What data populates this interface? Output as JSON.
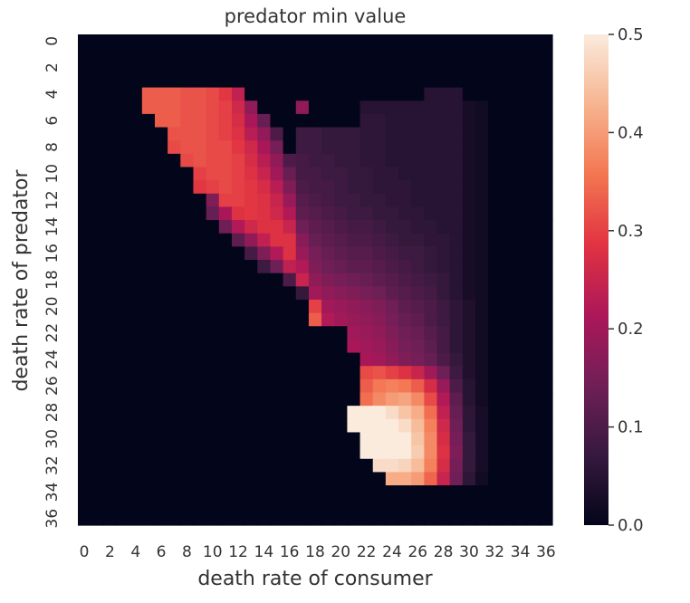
{
  "chart_data": {
    "type": "heatmap",
    "title": "predator min value",
    "xlabel": "death rate of consumer",
    "ylabel": "death rate of predator",
    "x_ticks": [
      "0",
      "2",
      "4",
      "6",
      "8",
      "10",
      "12",
      "14",
      "16",
      "18",
      "20",
      "22",
      "24",
      "26",
      "28",
      "30",
      "32",
      "34",
      "36"
    ],
    "y_ticks": [
      "0",
      "2",
      "4",
      "6",
      "8",
      "10",
      "12",
      "14",
      "16",
      "18",
      "20",
      "22",
      "24",
      "26",
      "28",
      "30",
      "32",
      "34",
      "36"
    ],
    "colorbar": {
      "range": [
        0.0,
        0.5
      ],
      "ticks": [
        "0.0",
        "0.1",
        "0.2",
        "0.3",
        "0.4",
        "0.5"
      ],
      "colors": [
        "#03051a",
        "#36193e",
        "#701f57",
        "#ad1759",
        "#e13342",
        "#f37651",
        "#f6b48f",
        "#faebdd"
      ]
    },
    "grid": false,
    "legend": "colorbar-right",
    "n_rows": 37,
    "n_cols": 37,
    "values": [
      [
        0,
        0,
        0,
        0,
        0,
        0,
        0,
        0,
        0,
        0,
        0,
        0,
        0,
        0,
        0,
        0,
        0,
        0,
        0,
        0,
        0,
        0,
        0,
        0,
        0,
        0,
        0,
        0,
        0,
        0,
        0,
        0,
        0,
        0,
        0,
        0,
        0
      ],
      [
        0,
        0,
        0,
        0,
        0,
        0,
        0,
        0,
        0,
        0,
        0,
        0,
        0,
        0,
        0,
        0,
        0,
        0,
        0,
        0,
        0,
        0,
        0,
        0,
        0,
        0,
        0,
        0,
        0,
        0,
        0,
        0,
        0,
        0,
        0,
        0,
        0
      ],
      [
        0,
        0,
        0,
        0,
        0,
        0,
        0,
        0,
        0,
        0,
        0,
        0,
        0,
        0,
        0,
        0,
        0,
        0,
        0,
        0,
        0,
        0,
        0,
        0,
        0,
        0,
        0,
        0,
        0,
        0,
        0,
        0,
        0,
        0,
        0,
        0,
        0
      ],
      [
        0,
        0,
        0,
        0,
        0,
        0,
        0,
        0,
        0,
        0,
        0,
        0,
        0,
        0,
        0,
        0,
        0,
        0,
        0,
        0,
        0,
        0,
        0,
        0,
        0,
        0,
        0,
        0,
        0,
        0,
        0,
        0,
        0,
        0,
        0,
        0,
        0
      ],
      [
        0,
        0,
        0,
        0,
        0,
        0.33,
        0.33,
        0.33,
        0.32,
        0.32,
        0.31,
        0.29,
        0.24,
        0,
        0,
        0,
        0,
        0,
        0,
        0,
        0,
        0,
        0,
        0,
        0,
        0,
        0,
        0.05,
        0.05,
        0.05,
        0,
        0,
        0,
        0,
        0,
        0,
        0
      ],
      [
        0,
        0,
        0,
        0,
        0,
        0.33,
        0.33,
        0.33,
        0.32,
        0.32,
        0.31,
        0.3,
        0.26,
        0.18,
        0,
        0,
        0,
        0.18,
        0,
        0,
        0,
        0,
        0.05,
        0.05,
        0.05,
        0.05,
        0.05,
        0.05,
        0.05,
        0.05,
        0.03,
        0.02,
        0,
        0,
        0,
        0,
        0
      ],
      [
        0,
        0,
        0,
        0,
        0,
        0,
        0.33,
        0.33,
        0.32,
        0.32,
        0.31,
        0.3,
        0.27,
        0.21,
        0.13,
        0,
        0,
        0,
        0,
        0,
        0,
        0,
        0.06,
        0.06,
        0.05,
        0.05,
        0.05,
        0.05,
        0.05,
        0.05,
        0.03,
        0.02,
        0,
        0,
        0,
        0,
        0
      ],
      [
        0,
        0,
        0,
        0,
        0,
        0,
        0,
        0.32,
        0.32,
        0.32,
        0.31,
        0.3,
        0.28,
        0.23,
        0.18,
        0.1,
        0,
        0.08,
        0.08,
        0.07,
        0.07,
        0.07,
        0.06,
        0.06,
        0.05,
        0.05,
        0.05,
        0.05,
        0.05,
        0.05,
        0.03,
        0.02,
        0,
        0,
        0,
        0,
        0
      ],
      [
        0,
        0,
        0,
        0,
        0,
        0,
        0,
        0.31,
        0.32,
        0.32,
        0.31,
        0.31,
        0.29,
        0.26,
        0.21,
        0.15,
        0,
        0.08,
        0.08,
        0.07,
        0.07,
        0.07,
        0.06,
        0.06,
        0.05,
        0.05,
        0.05,
        0.05,
        0.05,
        0.05,
        0.03,
        0.02,
        0,
        0,
        0,
        0,
        0
      ],
      [
        0,
        0,
        0,
        0,
        0,
        0,
        0,
        0,
        0.31,
        0.32,
        0.31,
        0.31,
        0.3,
        0.27,
        0.23,
        0.18,
        0.1,
        0.09,
        0.08,
        0.08,
        0.07,
        0.07,
        0.06,
        0.06,
        0.05,
        0.05,
        0.05,
        0.05,
        0.05,
        0.05,
        0.03,
        0.02,
        0,
        0,
        0,
        0,
        0
      ],
      [
        0,
        0,
        0,
        0,
        0,
        0,
        0,
        0,
        0,
        0.3,
        0.31,
        0.31,
        0.3,
        0.28,
        0.25,
        0.2,
        0.13,
        0.09,
        0.09,
        0.08,
        0.08,
        0.07,
        0.07,
        0.06,
        0.06,
        0.05,
        0.05,
        0.05,
        0.05,
        0.05,
        0.03,
        0.02,
        0,
        0,
        0,
        0,
        0
      ],
      [
        0,
        0,
        0,
        0,
        0,
        0,
        0,
        0,
        0,
        0.29,
        0.3,
        0.31,
        0.3,
        0.29,
        0.27,
        0.23,
        0.16,
        0.1,
        0.09,
        0.09,
        0.08,
        0.07,
        0.07,
        0.06,
        0.06,
        0.06,
        0.05,
        0.05,
        0.05,
        0.05,
        0.03,
        0.02,
        0,
        0,
        0,
        0,
        0
      ],
      [
        0,
        0,
        0,
        0,
        0,
        0,
        0,
        0,
        0,
        0,
        0.16,
        0.3,
        0.3,
        0.29,
        0.28,
        0.25,
        0.19,
        0.11,
        0.1,
        0.09,
        0.08,
        0.08,
        0.07,
        0.07,
        0.06,
        0.06,
        0.05,
        0.05,
        0.05,
        0.05,
        0.03,
        0.02,
        0,
        0,
        0,
        0,
        0
      ],
      [
        0,
        0,
        0,
        0,
        0,
        0,
        0,
        0,
        0,
        0,
        0.13,
        0.21,
        0.28,
        0.29,
        0.28,
        0.26,
        0.22,
        0.12,
        0.11,
        0.1,
        0.09,
        0.08,
        0.08,
        0.07,
        0.07,
        0.06,
        0.06,
        0.05,
        0.05,
        0.05,
        0.03,
        0.02,
        0,
        0,
        0,
        0,
        0
      ],
      [
        0,
        0,
        0,
        0,
        0,
        0,
        0,
        0,
        0,
        0,
        0,
        0.14,
        0.22,
        0.26,
        0.28,
        0.28,
        0.25,
        0.14,
        0.12,
        0.11,
        0.1,
        0.09,
        0.09,
        0.08,
        0.07,
        0.07,
        0.06,
        0.06,
        0.05,
        0.05,
        0.03,
        0.02,
        0,
        0,
        0,
        0,
        0
      ],
      [
        0,
        0,
        0,
        0,
        0,
        0,
        0,
        0,
        0,
        0,
        0,
        0,
        0.12,
        0.18,
        0.24,
        0.28,
        0.28,
        0.17,
        0.13,
        0.12,
        0.11,
        0.1,
        0.1,
        0.09,
        0.08,
        0.07,
        0.07,
        0.06,
        0.06,
        0.05,
        0.03,
        0.02,
        0,
        0,
        0,
        0,
        0
      ],
      [
        0,
        0,
        0,
        0,
        0,
        0,
        0,
        0,
        0,
        0,
        0,
        0,
        0,
        0.09,
        0.16,
        0.22,
        0.28,
        0.19,
        0.15,
        0.13,
        0.12,
        0.11,
        0.11,
        0.1,
        0.09,
        0.08,
        0.08,
        0.07,
        0.06,
        0.05,
        0.03,
        0.02,
        0,
        0,
        0,
        0,
        0
      ],
      [
        0,
        0,
        0,
        0,
        0,
        0,
        0,
        0,
        0,
        0,
        0,
        0,
        0,
        0,
        0.08,
        0.14,
        0.24,
        0.22,
        0.16,
        0.14,
        0.13,
        0.12,
        0.12,
        0.11,
        0.1,
        0.09,
        0.08,
        0.07,
        0.06,
        0.05,
        0.03,
        0.02,
        0,
        0,
        0,
        0,
        0
      ],
      [
        0,
        0,
        0,
        0,
        0,
        0,
        0,
        0,
        0,
        0,
        0,
        0,
        0,
        0,
        0,
        0,
        0.1,
        0.25,
        0.18,
        0.16,
        0.15,
        0.14,
        0.13,
        0.12,
        0.11,
        0.1,
        0.09,
        0.08,
        0.07,
        0.05,
        0.03,
        0.02,
        0,
        0,
        0,
        0,
        0
      ],
      [
        0,
        0,
        0,
        0,
        0,
        0,
        0,
        0,
        0,
        0,
        0,
        0,
        0,
        0,
        0,
        0,
        0,
        0.07,
        0.2,
        0.18,
        0.17,
        0.16,
        0.15,
        0.14,
        0.12,
        0.11,
        0.1,
        0.09,
        0.07,
        0.05,
        0.03,
        0.02,
        0,
        0,
        0,
        0,
        0
      ],
      [
        0,
        0,
        0,
        0,
        0,
        0,
        0,
        0,
        0,
        0,
        0,
        0,
        0,
        0,
        0,
        0,
        0,
        0,
        0.3,
        0.2,
        0.19,
        0.18,
        0.17,
        0.16,
        0.14,
        0.12,
        0.11,
        0.1,
        0.08,
        0.06,
        0.04,
        0.02,
        0,
        0,
        0,
        0,
        0
      ],
      [
        0,
        0,
        0,
        0,
        0,
        0,
        0,
        0,
        0,
        0,
        0,
        0,
        0,
        0,
        0,
        0,
        0,
        0,
        0.33,
        0.22,
        0.2,
        0.19,
        0.18,
        0.17,
        0.15,
        0.13,
        0.12,
        0.1,
        0.08,
        0.06,
        0.04,
        0.02,
        0,
        0,
        0,
        0,
        0
      ],
      [
        0,
        0,
        0,
        0,
        0,
        0,
        0,
        0,
        0,
        0,
        0,
        0,
        0,
        0,
        0,
        0,
        0,
        0,
        0,
        0,
        0,
        0.2,
        0.19,
        0.18,
        0.16,
        0.14,
        0.13,
        0.11,
        0.09,
        0.06,
        0.04,
        0.02,
        0,
        0,
        0,
        0,
        0
      ],
      [
        0,
        0,
        0,
        0,
        0,
        0,
        0,
        0,
        0,
        0,
        0,
        0,
        0,
        0,
        0,
        0,
        0,
        0,
        0,
        0,
        0,
        0.21,
        0.2,
        0.19,
        0.17,
        0.15,
        0.14,
        0.12,
        0.09,
        0.06,
        0.04,
        0.02,
        0,
        0,
        0,
        0,
        0
      ],
      [
        0,
        0,
        0,
        0,
        0,
        0,
        0,
        0,
        0,
        0,
        0,
        0,
        0,
        0,
        0,
        0,
        0,
        0,
        0,
        0,
        0,
        0,
        0.21,
        0.2,
        0.18,
        0.16,
        0.15,
        0.13,
        0.1,
        0.07,
        0.04,
        0.02,
        0,
        0,
        0,
        0,
        0
      ],
      [
        0,
        0,
        0,
        0,
        0,
        0,
        0,
        0,
        0,
        0,
        0,
        0,
        0,
        0,
        0,
        0,
        0,
        0,
        0,
        0,
        0,
        0,
        0.31,
        0.32,
        0.3,
        0.28,
        0.25,
        0.2,
        0.14,
        0.08,
        0.04,
        0.02,
        0,
        0,
        0,
        0,
        0
      ],
      [
        0,
        0,
        0,
        0,
        0,
        0,
        0,
        0,
        0,
        0,
        0,
        0,
        0,
        0,
        0,
        0,
        0,
        0,
        0,
        0,
        0,
        0,
        0.33,
        0.36,
        0.37,
        0.36,
        0.33,
        0.27,
        0.19,
        0.1,
        0.05,
        0.02,
        0,
        0,
        0,
        0,
        0
      ],
      [
        0,
        0,
        0,
        0,
        0,
        0,
        0,
        0,
        0,
        0,
        0,
        0,
        0,
        0,
        0,
        0,
        0,
        0,
        0,
        0,
        0,
        0,
        0.35,
        0.38,
        0.4,
        0.41,
        0.38,
        0.31,
        0.22,
        0.12,
        0.05,
        0.02,
        0,
        0,
        0,
        0,
        0
      ],
      [
        0,
        0,
        0,
        0,
        0,
        0,
        0,
        0,
        0,
        0,
        0,
        0,
        0,
        0,
        0,
        0,
        0,
        0,
        0,
        0,
        0,
        0.5,
        0.5,
        0.5,
        0.48,
        0.45,
        0.42,
        0.35,
        0.24,
        0.13,
        0.06,
        0.03,
        0,
        0,
        0,
        0,
        0
      ],
      [
        0,
        0,
        0,
        0,
        0,
        0,
        0,
        0,
        0,
        0,
        0,
        0,
        0,
        0,
        0,
        0,
        0,
        0,
        0,
        0,
        0,
        0.5,
        0.5,
        0.5,
        0.5,
        0.48,
        0.44,
        0.37,
        0.26,
        0.14,
        0.06,
        0.03,
        0,
        0,
        0,
        0,
        0
      ],
      [
        0,
        0,
        0,
        0,
        0,
        0,
        0,
        0,
        0,
        0,
        0,
        0,
        0,
        0,
        0,
        0,
        0,
        0,
        0,
        0,
        0,
        0,
        0.5,
        0.5,
        0.5,
        0.5,
        0.45,
        0.38,
        0.27,
        0.15,
        0.07,
        0.03,
        0,
        0,
        0,
        0,
        0
      ],
      [
        0,
        0,
        0,
        0,
        0,
        0,
        0,
        0,
        0,
        0,
        0,
        0,
        0,
        0,
        0,
        0,
        0,
        0,
        0,
        0,
        0,
        0,
        0.5,
        0.5,
        0.5,
        0.5,
        0.46,
        0.38,
        0.28,
        0.16,
        0.07,
        0.03,
        0,
        0,
        0,
        0,
        0
      ],
      [
        0,
        0,
        0,
        0,
        0,
        0,
        0,
        0,
        0,
        0,
        0,
        0,
        0,
        0,
        0,
        0,
        0,
        0,
        0,
        0,
        0,
        0,
        0,
        0.48,
        0.48,
        0.47,
        0.44,
        0.37,
        0.27,
        0.15,
        0.07,
        0.03,
        0,
        0,
        0,
        0,
        0
      ],
      [
        0,
        0,
        0,
        0,
        0,
        0,
        0,
        0,
        0,
        0,
        0,
        0,
        0,
        0,
        0,
        0,
        0,
        0,
        0,
        0,
        0,
        0,
        0,
        0,
        0.42,
        0.42,
        0.4,
        0.34,
        0.25,
        0.14,
        0.06,
        0.02,
        0,
        0,
        0,
        0,
        0
      ],
      [
        0,
        0,
        0,
        0,
        0,
        0,
        0,
        0,
        0,
        0,
        0,
        0,
        0,
        0,
        0,
        0,
        0,
        0,
        0,
        0,
        0,
        0,
        0,
        0,
        0,
        0,
        0,
        0,
        0,
        0,
        0,
        0,
        0,
        0,
        0,
        0,
        0
      ],
      [
        0,
        0,
        0,
        0,
        0,
        0,
        0,
        0,
        0,
        0,
        0,
        0,
        0,
        0,
        0,
        0,
        0,
        0,
        0,
        0,
        0,
        0,
        0,
        0,
        0,
        0,
        0,
        0,
        0,
        0,
        0,
        0,
        0,
        0,
        0,
        0,
        0
      ],
      [
        0,
        0,
        0,
        0,
        0,
        0,
        0,
        0,
        0,
        0,
        0,
        0,
        0,
        0,
        0,
        0,
        0,
        0,
        0,
        0,
        0,
        0,
        0,
        0,
        0,
        0,
        0,
        0,
        0,
        0,
        0,
        0,
        0,
        0,
        0,
        0,
        0
      ]
    ]
  }
}
